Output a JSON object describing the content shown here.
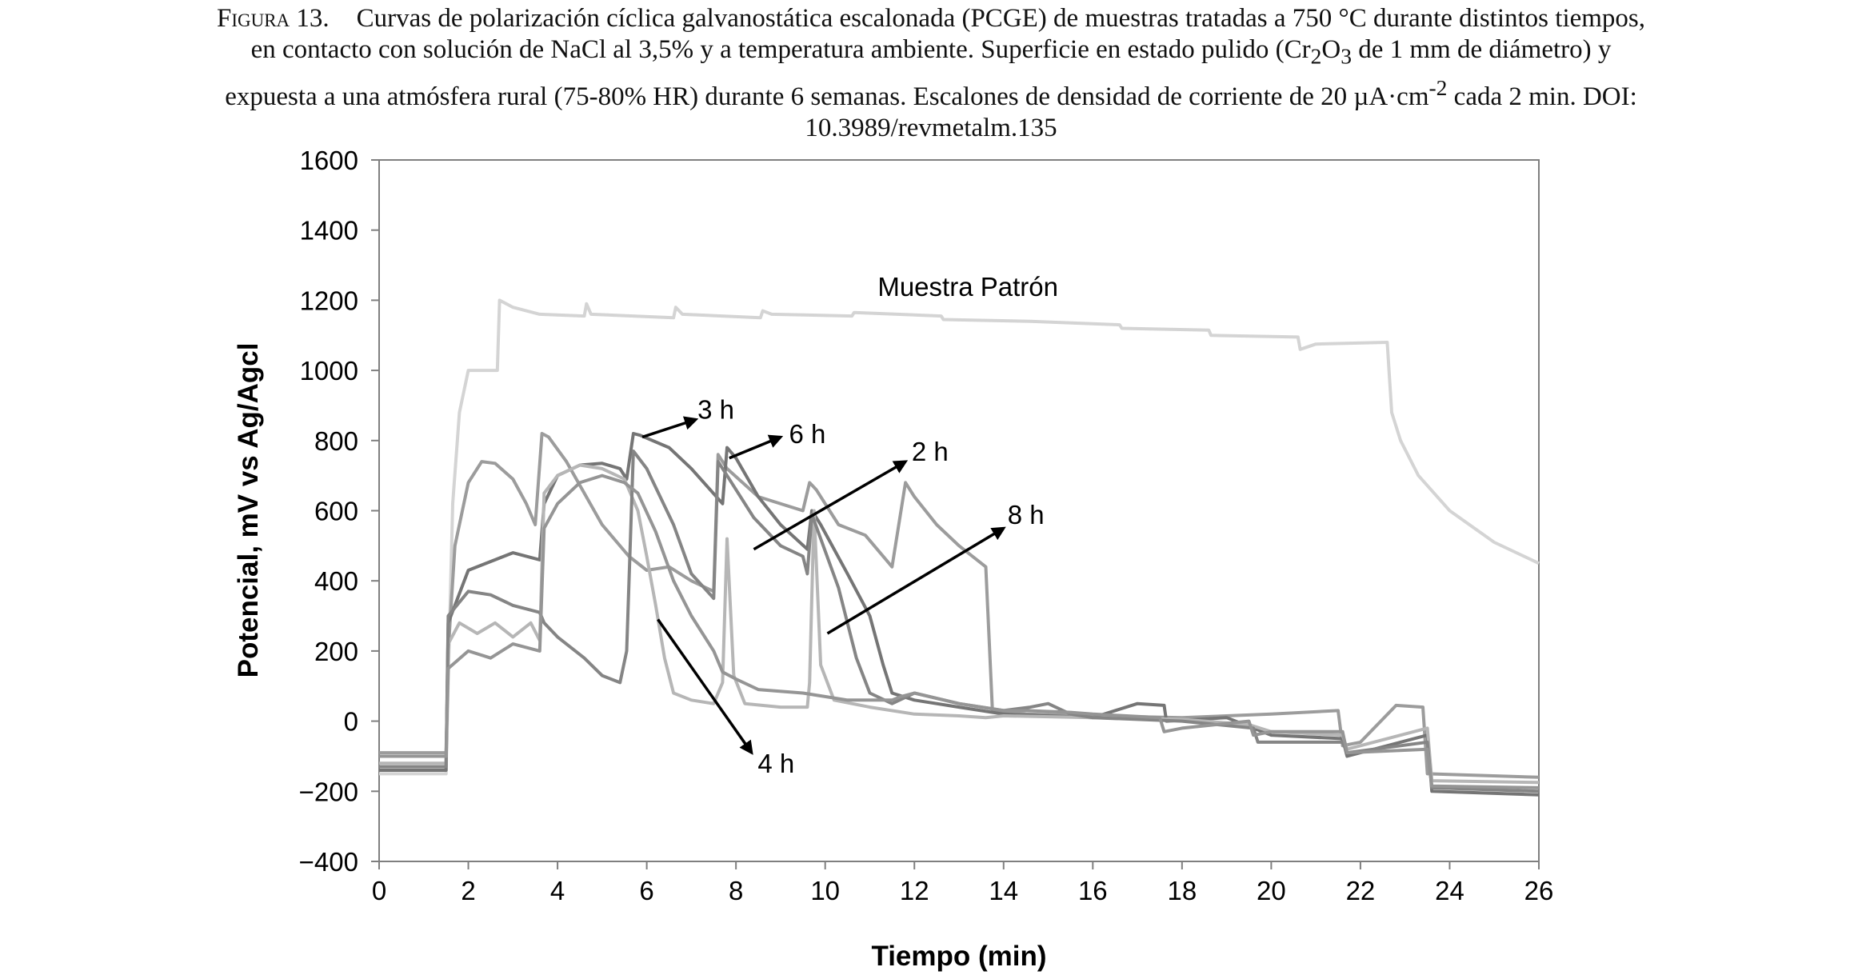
{
  "caption": {
    "lead": "Figura 13.",
    "line1": "Curvas de polarización cíclica galvanostática escalonada (PCGE) de muestras tratadas a 750 °C durante distintos tiempos,",
    "line2a": "en contacto con solución de NaCl al 3,5% y a temperatura ambiente. Superficie en estado pulido (Cr",
    "line2_sub1": "2",
    "line2b": "O",
    "line2_sub2": "3",
    "line2c": " de 1 mm de diámetro) y",
    "line3a": "expuesta a una atmósfera rural (75-80% HR) durante 6 semanas. Escalones de densidad de corriente de 20 µA·cm",
    "line3_sup": "-2",
    "line3b": " cada 2 min.  DOI:",
    "line4": "10.3989/revmetalm.135"
  },
  "chart_data": {
    "type": "line",
    "xlabel": "Tiempo (min)",
    "ylabel": "Potencial, mV vs Ag/Agcl",
    "xlim": [
      0,
      26
    ],
    "ylim": [
      -400,
      1600
    ],
    "xticks": [
      0,
      2,
      4,
      6,
      8,
      10,
      12,
      14,
      16,
      18,
      20,
      22,
      24,
      26
    ],
    "yticks": [
      -400,
      -200,
      0,
      200,
      400,
      600,
      800,
      1000,
      1200,
      1400,
      1600
    ],
    "ytick_labels": [
      "−400",
      "−200",
      "0",
      "200",
      "400",
      "600",
      "800",
      "1000",
      "1200",
      "1400",
      "1600"
    ],
    "grid": false,
    "series": [
      {
        "name": "Muestra Patrón",
        "color": "#d4d4d4",
        "points": [
          [
            0,
            -150
          ],
          [
            1.5,
            -150
          ],
          [
            1.55,
            120
          ],
          [
            1.65,
            620
          ],
          [
            1.8,
            880
          ],
          [
            2.0,
            1000
          ],
          [
            2.65,
            1000
          ],
          [
            2.7,
            1200
          ],
          [
            3.0,
            1180
          ],
          [
            3.6,
            1160
          ],
          [
            4.6,
            1155
          ],
          [
            4.65,
            1190
          ],
          [
            4.75,
            1160
          ],
          [
            6.6,
            1150
          ],
          [
            6.65,
            1180
          ],
          [
            6.8,
            1160
          ],
          [
            8.55,
            1150
          ],
          [
            8.6,
            1170
          ],
          [
            8.8,
            1160
          ],
          [
            10.6,
            1155
          ],
          [
            10.65,
            1165
          ],
          [
            12.6,
            1155
          ],
          [
            12.65,
            1145
          ],
          [
            14.6,
            1140
          ],
          [
            16.6,
            1130
          ],
          [
            16.65,
            1120
          ],
          [
            18.6,
            1115
          ],
          [
            18.65,
            1100
          ],
          [
            20.6,
            1095
          ],
          [
            20.65,
            1060
          ],
          [
            21.0,
            1075
          ],
          [
            22.6,
            1080
          ],
          [
            22.7,
            880
          ],
          [
            22.9,
            800
          ],
          [
            23.3,
            700
          ],
          [
            24.0,
            600
          ],
          [
            25.0,
            510
          ],
          [
            26.0,
            450
          ]
        ]
      },
      {
        "name": "2 h",
        "color": "#9c9c9c",
        "points": [
          [
            0,
            -90
          ],
          [
            1.5,
            -90
          ],
          [
            1.55,
            200
          ],
          [
            1.7,
            500
          ],
          [
            2.0,
            680
          ],
          [
            2.3,
            740
          ],
          [
            2.6,
            735
          ],
          [
            3.0,
            690
          ],
          [
            3.3,
            620
          ],
          [
            3.5,
            560
          ],
          [
            3.65,
            820
          ],
          [
            3.8,
            810
          ],
          [
            4.2,
            740
          ],
          [
            5.0,
            560
          ],
          [
            5.6,
            470
          ],
          [
            6.0,
            430
          ],
          [
            6.5,
            440
          ],
          [
            7.0,
            400
          ],
          [
            7.5,
            370
          ],
          [
            7.6,
            760
          ],
          [
            7.8,
            720
          ],
          [
            8.5,
            640
          ],
          [
            9.5,
            600
          ],
          [
            9.65,
            680
          ],
          [
            9.8,
            660
          ],
          [
            10.3,
            560
          ],
          [
            10.9,
            530
          ],
          [
            11.5,
            440
          ],
          [
            11.8,
            680
          ],
          [
            12.0,
            640
          ],
          [
            12.5,
            560
          ],
          [
            13.0,
            500
          ],
          [
            13.6,
            440
          ],
          [
            13.75,
            30
          ],
          [
            14.5,
            20
          ],
          [
            16.0,
            15
          ],
          [
            18.0,
            10
          ],
          [
            20.0,
            20
          ],
          [
            21.5,
            30
          ],
          [
            21.6,
            -70
          ],
          [
            22.0,
            -60
          ],
          [
            22.8,
            45
          ],
          [
            23.4,
            40
          ],
          [
            23.5,
            -150
          ],
          [
            26.0,
            -160
          ]
        ]
      },
      {
        "name": "3 h",
        "color": "#757575",
        "points": [
          [
            0,
            -140
          ],
          [
            1.5,
            -140
          ],
          [
            1.55,
            280
          ],
          [
            2.0,
            430
          ],
          [
            3.0,
            480
          ],
          [
            3.6,
            460
          ],
          [
            3.7,
            620
          ],
          [
            4.0,
            700
          ],
          [
            4.5,
            730
          ],
          [
            5.0,
            735
          ],
          [
            5.4,
            720
          ],
          [
            5.55,
            690
          ],
          [
            5.7,
            820
          ],
          [
            5.85,
            815
          ],
          [
            6.5,
            780
          ],
          [
            7.0,
            720
          ],
          [
            7.7,
            620
          ],
          [
            7.8,
            780
          ],
          [
            8.0,
            750
          ],
          [
            8.5,
            640
          ],
          [
            9.0,
            560
          ],
          [
            9.6,
            490
          ],
          [
            9.7,
            600
          ],
          [
            9.9,
            560
          ],
          [
            10.5,
            420
          ],
          [
            11.0,
            300
          ],
          [
            11.3,
            160
          ],
          [
            11.5,
            80
          ],
          [
            12.0,
            60
          ],
          [
            13.0,
            40
          ],
          [
            14.0,
            20
          ],
          [
            16.0,
            10
          ],
          [
            17.0,
            50
          ],
          [
            17.6,
            45
          ],
          [
            17.65,
            0
          ],
          [
            19.0,
            10
          ],
          [
            20.0,
            -40
          ],
          [
            21.6,
            -50
          ],
          [
            21.7,
            -100
          ],
          [
            23.5,
            -40
          ],
          [
            23.6,
            -200
          ],
          [
            26.0,
            -210
          ]
        ]
      },
      {
        "name": "4 h",
        "color": "#b6b6b6",
        "points": [
          [
            0,
            -120
          ],
          [
            1.5,
            -120
          ],
          [
            1.55,
            220
          ],
          [
            1.8,
            280
          ],
          [
            2.2,
            250
          ],
          [
            2.6,
            280
          ],
          [
            3.0,
            240
          ],
          [
            3.4,
            280
          ],
          [
            3.6,
            230
          ],
          [
            3.7,
            650
          ],
          [
            4.0,
            700
          ],
          [
            4.5,
            730
          ],
          [
            5.0,
            720
          ],
          [
            5.5,
            690
          ],
          [
            5.8,
            600
          ],
          [
            6.0,
            470
          ],
          [
            6.2,
            330
          ],
          [
            6.4,
            180
          ],
          [
            6.6,
            80
          ],
          [
            7.0,
            60
          ],
          [
            7.5,
            50
          ],
          [
            7.7,
            110
          ],
          [
            7.8,
            520
          ],
          [
            7.95,
            130
          ],
          [
            8.2,
            50
          ],
          [
            9.0,
            40
          ],
          [
            9.6,
            40
          ],
          [
            9.65,
            110
          ],
          [
            9.75,
            600
          ],
          [
            9.9,
            160
          ],
          [
            10.2,
            60
          ],
          [
            11.0,
            40
          ],
          [
            12.0,
            20
          ],
          [
            13.0,
            15
          ],
          [
            13.6,
            10
          ],
          [
            14.0,
            15
          ],
          [
            16.0,
            10
          ],
          [
            18.0,
            5
          ],
          [
            19.5,
            -10
          ],
          [
            20.0,
            -30
          ],
          [
            21.6,
            -40
          ],
          [
            21.7,
            -80
          ],
          [
            23.5,
            -20
          ],
          [
            23.6,
            -170
          ],
          [
            26.0,
            -175
          ]
        ]
      },
      {
        "name": "6 h",
        "color": "#858585",
        "points": [
          [
            0,
            -130
          ],
          [
            1.5,
            -130
          ],
          [
            1.55,
            300
          ],
          [
            2.0,
            370
          ],
          [
            2.5,
            360
          ],
          [
            3.0,
            330
          ],
          [
            3.6,
            310
          ],
          [
            3.7,
            280
          ],
          [
            4.0,
            240
          ],
          [
            4.6,
            180
          ],
          [
            5.0,
            130
          ],
          [
            5.4,
            110
          ],
          [
            5.55,
            200
          ],
          [
            5.7,
            770
          ],
          [
            6.0,
            720
          ],
          [
            6.6,
            560
          ],
          [
            7.0,
            420
          ],
          [
            7.5,
            350
          ],
          [
            7.6,
            740
          ],
          [
            7.8,
            700
          ],
          [
            8.4,
            580
          ],
          [
            9.0,
            500
          ],
          [
            9.5,
            470
          ],
          [
            9.6,
            420
          ],
          [
            9.7,
            590
          ],
          [
            9.9,
            520
          ],
          [
            10.3,
            380
          ],
          [
            10.7,
            180
          ],
          [
            11.0,
            80
          ],
          [
            11.5,
            50
          ],
          [
            12.0,
            80
          ],
          [
            13.0,
            50
          ],
          [
            14.0,
            30
          ],
          [
            14.6,
            40
          ],
          [
            15.0,
            50
          ],
          [
            15.5,
            20
          ],
          [
            16.0,
            10
          ],
          [
            18.0,
            0
          ],
          [
            19.6,
            -20
          ],
          [
            19.7,
            -60
          ],
          [
            21.6,
            -60
          ],
          [
            21.7,
            -90
          ],
          [
            23.5,
            -60
          ],
          [
            23.6,
            -190
          ],
          [
            26.0,
            -200
          ]
        ]
      },
      {
        "name": "8 h",
        "color": "#959595",
        "points": [
          [
            0,
            -100
          ],
          [
            1.5,
            -100
          ],
          [
            1.55,
            150
          ],
          [
            2.0,
            200
          ],
          [
            2.5,
            180
          ],
          [
            3.0,
            220
          ],
          [
            3.6,
            200
          ],
          [
            3.7,
            550
          ],
          [
            4.0,
            620
          ],
          [
            4.5,
            680
          ],
          [
            5.0,
            700
          ],
          [
            5.5,
            680
          ],
          [
            5.8,
            650
          ],
          [
            6.2,
            540
          ],
          [
            6.6,
            400
          ],
          [
            7.0,
            300
          ],
          [
            7.5,
            200
          ],
          [
            7.7,
            140
          ],
          [
            8.0,
            120
          ],
          [
            8.5,
            90
          ],
          [
            9.5,
            80
          ],
          [
            10.5,
            60
          ],
          [
            11.5,
            60
          ],
          [
            11.7,
            70
          ],
          [
            12.0,
            80
          ],
          [
            13.0,
            50
          ],
          [
            14.0,
            30
          ],
          [
            14.5,
            30
          ],
          [
            15.5,
            25
          ],
          [
            16.0,
            20
          ],
          [
            17.5,
            10
          ],
          [
            17.6,
            -30
          ],
          [
            18.0,
            -20
          ],
          [
            19.5,
            0
          ],
          [
            19.6,
            -40
          ],
          [
            20.0,
            -30
          ],
          [
            21.6,
            -30
          ],
          [
            21.7,
            -90
          ],
          [
            23.5,
            -80
          ],
          [
            23.6,
            -185
          ],
          [
            26.0,
            -190
          ]
        ]
      }
    ],
    "annotations": [
      {
        "label": "Muestra Patrón",
        "x": 13.2,
        "y": 1240
      },
      {
        "label": "3 h",
        "arrow_from": [
          5.9,
          810
        ],
        "arrow_to": [
          7.1,
          860
        ],
        "text_at": [
          7.55,
          890
        ]
      },
      {
        "label": "6 h",
        "arrow_from": [
          7.85,
          750
        ],
        "arrow_to": [
          9.0,
          810
        ],
        "text_at": [
          9.6,
          820
        ]
      },
      {
        "label": "2 h",
        "arrow_from": [
          8.4,
          490
        ],
        "arrow_to": [
          11.8,
          740
        ],
        "text_at": [
          12.35,
          770
        ]
      },
      {
        "label": "8 h",
        "arrow_from": [
          10.05,
          250
        ],
        "arrow_to": [
          14.0,
          550
        ],
        "text_at": [
          14.5,
          590
        ]
      },
      {
        "label": "4 h",
        "arrow_from": [
          6.25,
          290
        ],
        "arrow_to": [
          8.35,
          -90
        ],
        "text_at": [
          8.9,
          -120
        ]
      }
    ]
  }
}
